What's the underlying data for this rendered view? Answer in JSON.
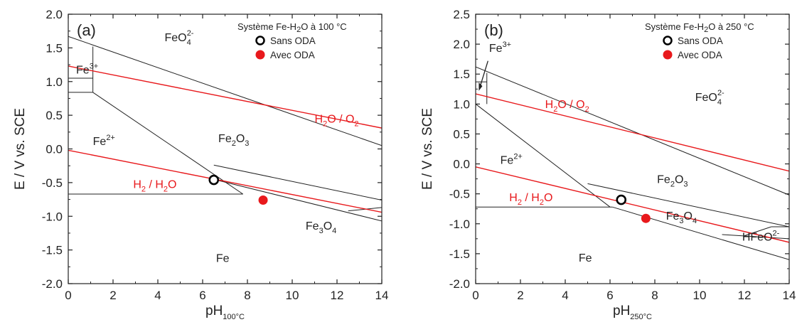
{
  "chart_data": [
    {
      "type": "scatter",
      "panel_label": "(a)",
      "xlabel": {
        "main": "pH",
        "sub": "100°C"
      },
      "ylabel": "E / V vs. SCE",
      "xlim": [
        0,
        14
      ],
      "ylim": [
        -2.0,
        2.0
      ],
      "xticks": [
        0,
        2,
        4,
        6,
        8,
        10,
        12,
        14
      ],
      "yticks": [
        -2.0,
        -1.5,
        -1.0,
        -0.5,
        0.0,
        0.5,
        1.0,
        1.5,
        2.0
      ],
      "legend": {
        "title": "Système Fe-H2O à 100 °C",
        "title_parts": [
          "Système Fe-H",
          "2",
          "O à 100 °C"
        ],
        "placement": "top-right",
        "entries": [
          {
            "label": "Sans ODA",
            "marker": "open-circle",
            "color": "#000000"
          },
          {
            "label": "Avec ODA",
            "marker": "filled-circle",
            "color": "#e8191c"
          }
        ]
      },
      "points": [
        {
          "series": "Sans ODA",
          "x": 6.5,
          "y": -0.46
        },
        {
          "series": "Avec ODA",
          "x": 8.7,
          "y": -0.76
        }
      ],
      "boundaries": [
        [
          [
            0,
            1.67
          ],
          [
            14,
            0.05
          ]
        ],
        [
          [
            0,
            1.05
          ],
          [
            1.1,
            1.05
          ]
        ],
        [
          [
            0,
            0.84
          ],
          [
            1.1,
            0.84
          ]
        ],
        [
          [
            1.1,
            0.84
          ],
          [
            1.1,
            1.52
          ]
        ],
        [
          [
            1.1,
            0.84
          ],
          [
            7.8,
            -0.67
          ]
        ],
        [
          [
            0,
            -0.67
          ],
          [
            7.8,
            -0.67
          ]
        ],
        [
          [
            6.5,
            -0.24
          ],
          [
            14,
            -0.76
          ]
        ],
        [
          [
            6.6,
            -0.46
          ],
          [
            14,
            -1.07
          ]
        ],
        [
          [
            12.5,
            -0.92
          ],
          [
            14,
            -0.87
          ]
        ]
      ],
      "reference_lines": [
        {
          "label": "H2O / O2",
          "points": [
            [
              0,
              1.23
            ],
            [
              14,
              0.31
            ]
          ],
          "color": "#e8191c"
        },
        {
          "label": "H2 / H2O",
          "points": [
            [
              0,
              -0.02
            ],
            [
              14,
              -0.94
            ]
          ],
          "color": "#e8191c"
        }
      ],
      "regions": [
        {
          "text": "FeO",
          "sub": "4",
          "sup": "2-",
          "at": [
            4.3,
            1.6
          ]
        },
        {
          "text": "Fe",
          "sup": "3+",
          "at": [
            0.35,
            1.12
          ]
        },
        {
          "text": "Fe",
          "sup": "2+",
          "at": [
            1.1,
            0.06
          ]
        },
        {
          "text": "Fe",
          "sub": "2",
          "text2": "O",
          "sub2": "3",
          "at": [
            6.7,
            0.1
          ]
        },
        {
          "text": "Fe",
          "sub": "3",
          "text2": "O",
          "sub2": "4",
          "at": [
            10.6,
            -1.2
          ]
        },
        {
          "text": "Fe",
          "at": [
            6.6,
            -1.68
          ]
        }
      ],
      "reaction_labels": [
        {
          "text": "H",
          "sub": "2",
          "text2": " / H",
          "sub2": "2",
          "text3": "O",
          "at": [
            2.9,
            -0.58
          ]
        },
        {
          "text": "H",
          "sub": "2",
          "text2": "O / O",
          "sub2": "2",
          "at": [
            11,
            0.39
          ]
        }
      ]
    },
    {
      "type": "scatter",
      "panel_label": "(b)",
      "xlabel": {
        "main": "pH",
        "sub": "250°C"
      },
      "ylabel": "E / V vs. SCE",
      "xlim": [
        0,
        14
      ],
      "ylim": [
        -2.0,
        2.5
      ],
      "xticks": [
        0,
        2,
        4,
        6,
        8,
        10,
        12,
        14
      ],
      "yticks": [
        -2.0,
        -1.5,
        -1.0,
        -0.5,
        0.0,
        0.5,
        1.0,
        1.5,
        2.0,
        2.5
      ],
      "legend": {
        "title": "Système Fe-H2O à 250 °C",
        "title_parts": [
          "Système Fe-H",
          "2",
          "O à 250 °C"
        ],
        "placement": "top-right",
        "entries": [
          {
            "label": "Sans ODA",
            "marker": "open-circle",
            "color": "#000000"
          },
          {
            "label": "Avec ODA",
            "marker": "filled-circle",
            "color": "#e8191c"
          }
        ]
      },
      "points": [
        {
          "series": "Sans ODA",
          "x": 6.5,
          "y": -0.6
        },
        {
          "series": "Avec ODA",
          "x": 7.6,
          "y": -0.91
        }
      ],
      "boundaries": [
        [
          [
            0,
            1.62
          ],
          [
            14,
            -0.52
          ]
        ],
        [
          [
            0,
            1.37
          ],
          [
            0.5,
            1.37
          ]
        ],
        [
          [
            0.5,
            1.0
          ],
          [
            0.5,
            1.52
          ]
        ],
        [
          [
            0,
            1.0
          ],
          [
            6.0,
            -0.72
          ]
        ],
        [
          [
            0,
            -0.72
          ],
          [
            6.1,
            -0.72
          ]
        ],
        [
          [
            5.0,
            -0.33
          ],
          [
            14,
            -1.05
          ]
        ],
        [
          [
            6.1,
            -0.72
          ],
          [
            14,
            -1.6
          ]
        ],
        [
          [
            11.0,
            -1.18
          ],
          [
            14,
            -1.25
          ]
        ],
        [
          [
            13.2,
            -1.05
          ],
          [
            14,
            -1.05
          ]
        ],
        [
          [
            12.0,
            -1.2
          ],
          [
            13.2,
            -1.05
          ]
        ]
      ],
      "reference_lines": [
        {
          "label": "H2O / O2",
          "points": [
            [
              0,
              1.17
            ],
            [
              14,
              -0.12
            ]
          ],
          "color": "#e8191c"
        },
        {
          "label": "H2 / H2O",
          "points": [
            [
              0,
              -0.05
            ],
            [
              14,
              -1.31
            ]
          ],
          "color": "#e8191c"
        }
      ],
      "regions": [
        {
          "text": "Fe",
          "sup": "3+",
          "at": [
            0.6,
            1.87
          ]
        },
        {
          "text": "FeO",
          "sub": "4",
          "sup": "2-",
          "at": [
            9.8,
            1.05
          ]
        },
        {
          "text": "Fe",
          "sup": "2+",
          "at": [
            1.1,
            0.0
          ]
        },
        {
          "text": "Fe",
          "sub": "2",
          "text2": "O",
          "sub2": "3",
          "at": [
            8.1,
            -0.32
          ]
        },
        {
          "text": "Fe",
          "sub": "3",
          "text2": "O",
          "sub2": "4",
          "at": [
            8.5,
            -0.93
          ]
        },
        {
          "text": "HFeO",
          "sup": "2-",
          "at": [
            11.9,
            -1.28
          ]
        },
        {
          "text": "Fe",
          "at": [
            4.6,
            -1.63
          ]
        }
      ],
      "reaction_labels": [
        {
          "text": "H",
          "sub": "2",
          "text2": "O / O",
          "sub2": "2",
          "at": [
            3.1,
            0.93
          ]
        },
        {
          "text": "H",
          "sub": "2",
          "text2": " / H",
          "sub2": "2",
          "text3": "O",
          "at": [
            1.5,
            -0.62
          ]
        }
      ]
    }
  ]
}
